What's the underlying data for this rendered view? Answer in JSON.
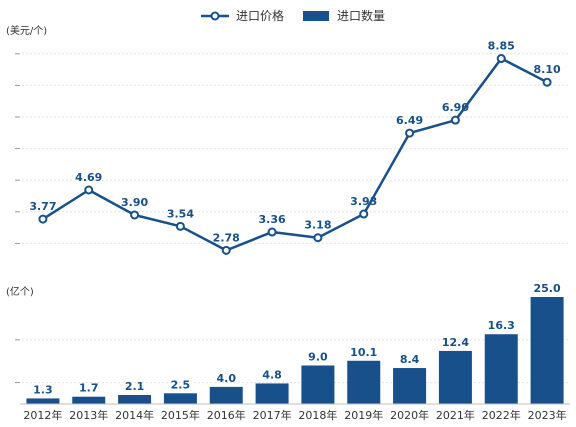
{
  "chart_data": [
    {
      "type": "line",
      "categories": [
        "2012年",
        "2013年",
        "2014年",
        "2015年",
        "2016年",
        "2017年",
        "2018年",
        "2019年",
        "2020年",
        "2021年",
        "2022年",
        "2023年"
      ],
      "series": [
        {
          "name": "进口价格",
          "values": [
            3.77,
            4.69,
            3.9,
            3.54,
            2.78,
            3.36,
            3.18,
            3.93,
            6.49,
            6.9,
            8.85,
            8.1
          ]
        }
      ],
      "data_labels": [
        "3.77",
        "4.69",
        "3.90",
        "3.54",
        "2.78",
        "3.36",
        "3.18",
        "3.93",
        "6.49",
        "6.90",
        "8.85",
        "8.10"
      ],
      "unit_label": "(美元/个)",
      "ylim": [
        2,
        9.5
      ],
      "grid": true
    },
    {
      "type": "bar",
      "categories": [
        "2012年",
        "2013年",
        "2014年",
        "2015年",
        "2016年",
        "2017年",
        "2018年",
        "2019年",
        "2020年",
        "2021年",
        "2022年",
        "2023年"
      ],
      "series": [
        {
          "name": "进口数量",
          "values": [
            1.3,
            1.7,
            2.1,
            2.5,
            4.0,
            4.8,
            9.0,
            10.1,
            8.4,
            12.4,
            16.3,
            25.0
          ]
        }
      ],
      "data_labels": [
        "1.3",
        "1.7",
        "2.1",
        "2.5",
        "4.0",
        "4.8",
        "9.0",
        "10.1",
        "8.4",
        "12.4",
        "16.3",
        "25.0"
      ],
      "unit_label": "(亿个)",
      "ylim": [
        0,
        25
      ],
      "grid": true
    }
  ],
  "legend": {
    "placement": "top-center",
    "items": [
      {
        "label": "进口价格",
        "marker": "line-circle"
      },
      {
        "label": "进口数量",
        "marker": "bar"
      }
    ]
  },
  "colors": {
    "series": "#17508b",
    "grid": "#e4e4e4",
    "text": "#333333"
  }
}
